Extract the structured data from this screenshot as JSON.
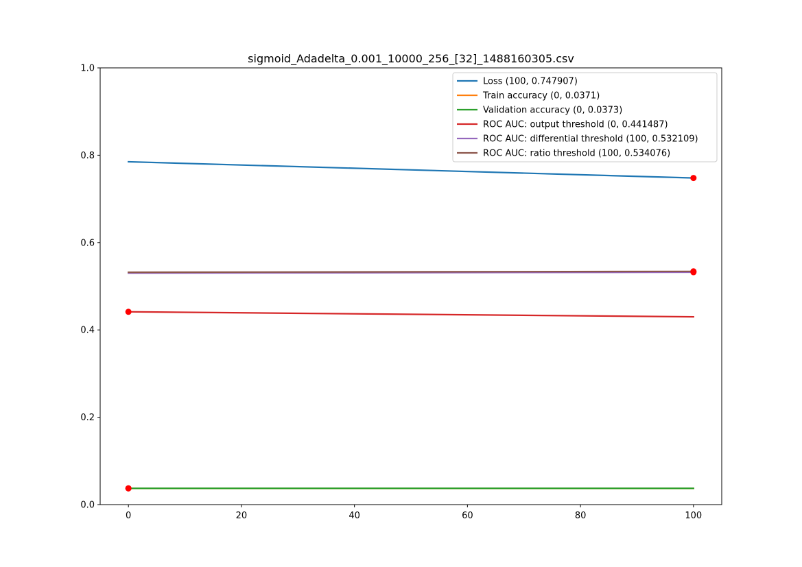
{
  "chart_data": {
    "type": "line",
    "title": "sigmoid_Adadelta_0.001_10000_256_[32]_1488160305.csv",
    "xlabel": "",
    "ylabel": "",
    "xlim": [
      -5,
      105
    ],
    "ylim": [
      0,
      1.0
    ],
    "xticks": [
      0,
      20,
      40,
      60,
      80,
      100
    ],
    "yticks": [
      0.0,
      0.2,
      0.4,
      0.6,
      0.8,
      1.0
    ],
    "xtick_labels": [
      "0",
      "20",
      "40",
      "60",
      "80",
      "100"
    ],
    "ytick_labels": [
      "0.0",
      "0.2",
      "0.4",
      "0.6",
      "0.8",
      "1.0"
    ],
    "grid": false,
    "legend_position": "top-right",
    "series": [
      {
        "name": "Loss (100, 0.747907)",
        "color": "#1f77b4",
        "x": [
          0,
          100
        ],
        "y": [
          0.785,
          0.747907
        ],
        "marker_point": [
          100,
          0.747907
        ]
      },
      {
        "name": "Train accuracy (0, 0.0371)",
        "color": "#ff7f0e",
        "x": [
          0,
          100
        ],
        "y": [
          0.0371,
          0.0371
        ],
        "marker_point": [
          0,
          0.0371
        ]
      },
      {
        "name": "Validation accuracy (0, 0.0373)",
        "color": "#2ca02c",
        "x": [
          0,
          100
        ],
        "y": [
          0.0373,
          0.0373
        ],
        "marker_point": [
          0,
          0.0373
        ]
      },
      {
        "name": "ROC AUC: output threshold (0, 0.441487)",
        "color": "#d62728",
        "x": [
          0,
          100
        ],
        "y": [
          0.441487,
          0.43
        ],
        "marker_point": [
          0,
          0.441487
        ]
      },
      {
        "name": "ROC AUC: differential threshold (100, 0.532109)",
        "color": "#9467bd",
        "x": [
          0,
          100
        ],
        "y": [
          0.53,
          0.532109
        ],
        "marker_point": [
          100,
          0.532109
        ]
      },
      {
        "name": "ROC AUC: ratio threshold (100, 0.534076)",
        "color": "#8c564b",
        "x": [
          0,
          100
        ],
        "y": [
          0.532,
          0.534076
        ],
        "marker_point": [
          100,
          0.534076
        ]
      }
    ],
    "marker_color": "#ff0000"
  }
}
